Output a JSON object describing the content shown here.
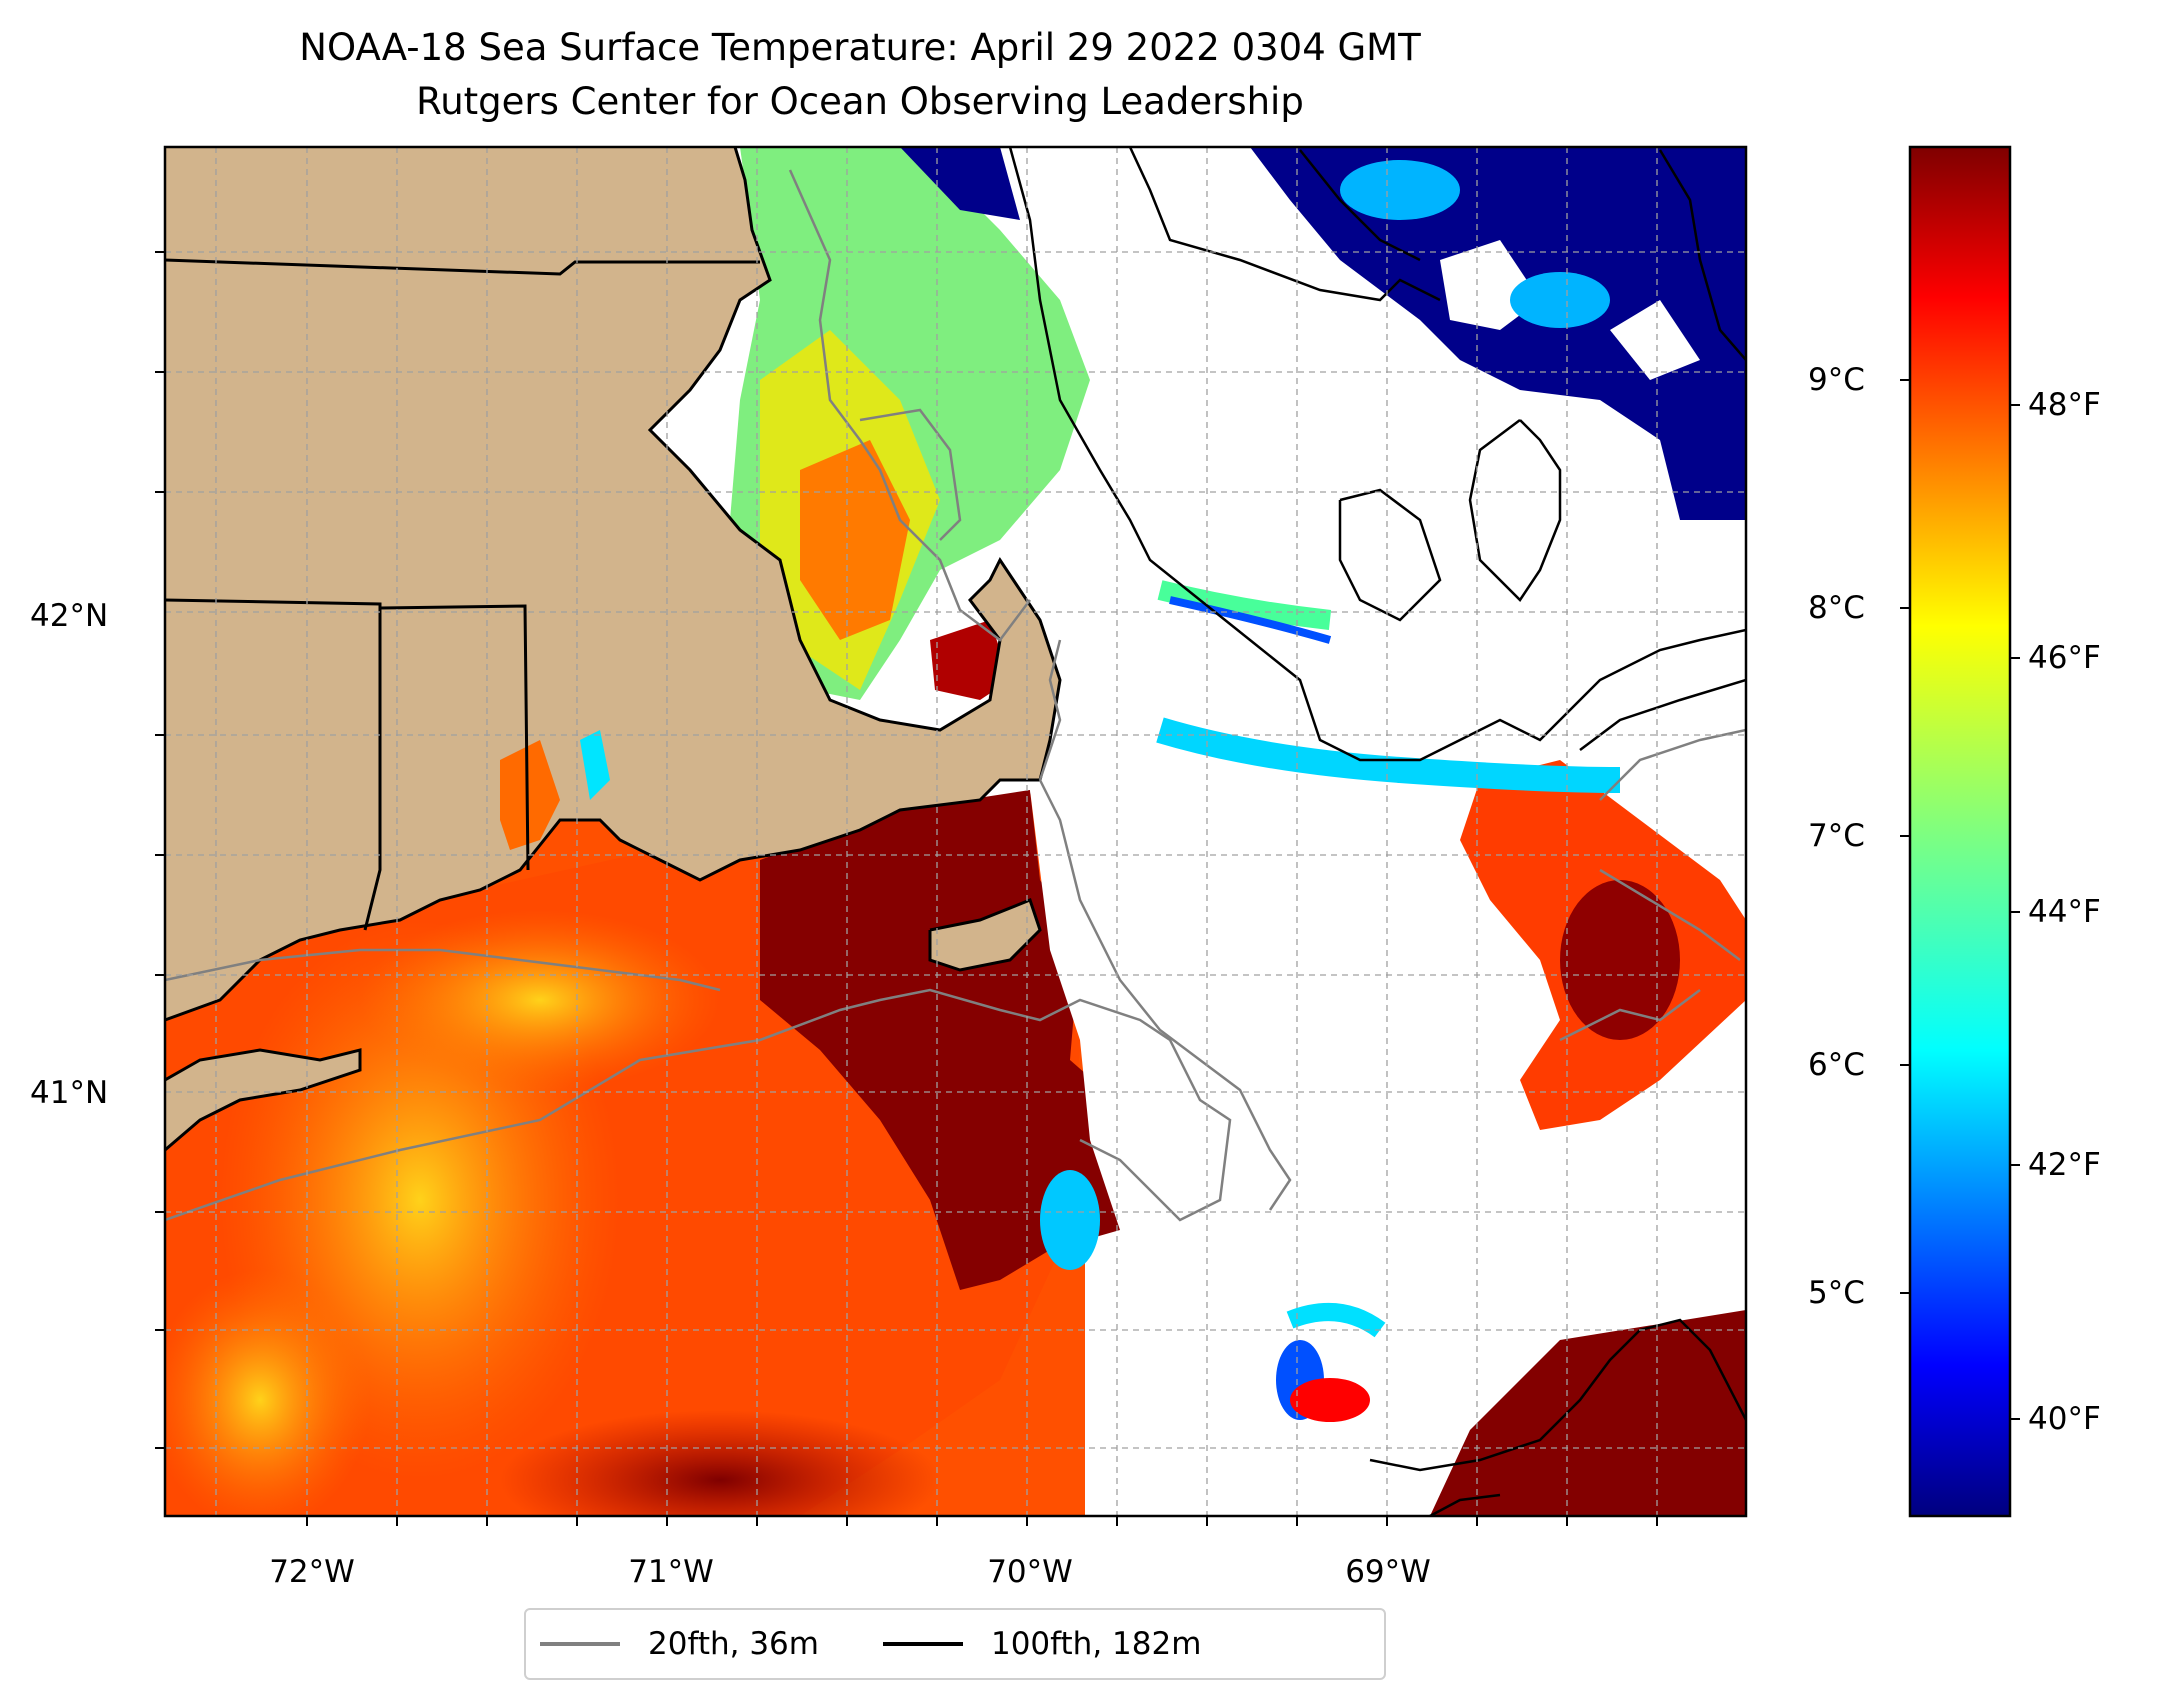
{
  "title": "NOAA-18 Sea Surface Temperature: April 29 2022 0304 GMT",
  "subtitle": "Rutgers Center for Ocean Observing Leadership",
  "longitude_ticks": [
    "72°W",
    "71°W",
    "70°W",
    "69°W"
  ],
  "latitude_ticks": [
    "42°N",
    "41°N"
  ],
  "colorbar": {
    "celsius_ticks": [
      "9°C",
      "8°C",
      "7°C",
      "6°C",
      "5°C"
    ],
    "fahrenheit_ticks": [
      "48°F",
      "46°F",
      "44°F",
      "42°F",
      "40°F"
    ],
    "colormap": [
      "#00007f",
      "#0000ff",
      "#007fff",
      "#00ffff",
      "#7fff7f",
      "#ffff00",
      "#ff7f00",
      "#ff0000",
      "#7f0000"
    ]
  },
  "legend": {
    "items": [
      {
        "label": "20fth, 36m",
        "color": "#808080"
      },
      {
        "label": "100fth, 182m",
        "color": "#000000"
      }
    ]
  },
  "map_colors": {
    "land": "#d2b48c",
    "no_data": "#ffffff",
    "isobath_20fth": "#808080",
    "isobath_100fth": "#000000"
  }
}
